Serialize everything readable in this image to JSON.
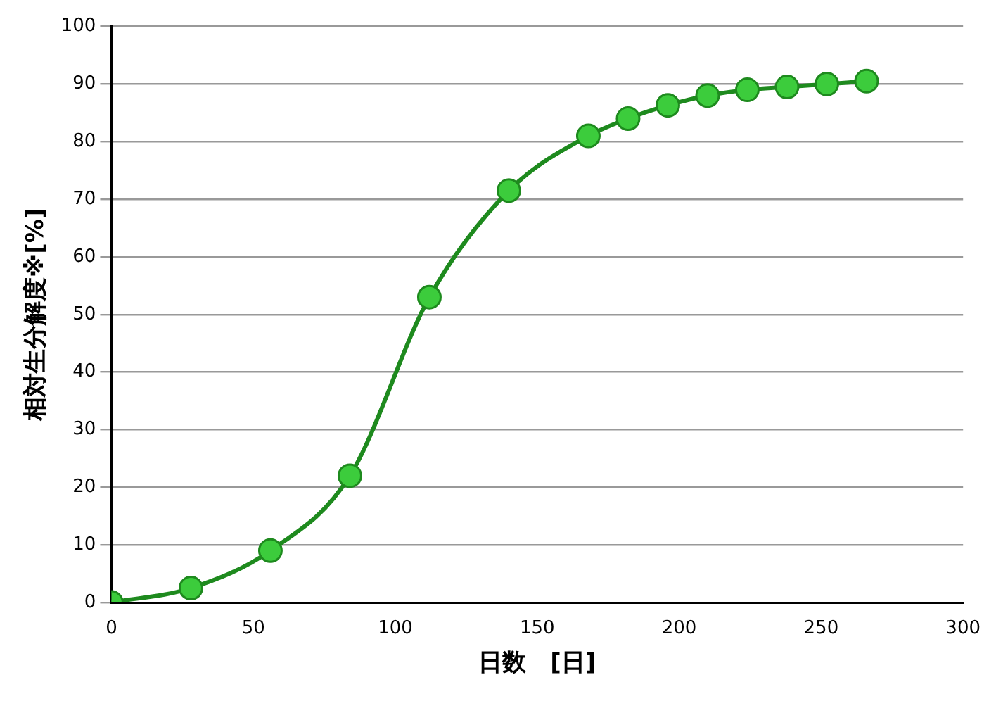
{
  "chart_data": {
    "type": "line",
    "xlabel": "日数　[日]",
    "ylabel": "相対生分解度※[%]",
    "x": [
      0,
      28,
      56,
      84,
      112,
      140,
      168,
      182,
      196,
      210,
      224,
      238,
      252,
      266
    ],
    "series": [
      {
        "color": "#1e8a1e",
        "values": [
          0,
          2.5,
          9,
          22,
          53,
          71.5,
          81,
          84,
          86.3,
          88,
          89,
          89.5,
          90,
          90.5
        ]
      }
    ],
    "xlim": [
      0,
      300
    ],
    "xticks": [
      0,
      50,
      100,
      150,
      200,
      250,
      300
    ],
    "ylim": [
      0,
      100
    ],
    "yticks": [
      0,
      10,
      20,
      30,
      40,
      50,
      60,
      70,
      80,
      90,
      100
    ],
    "grid": "y",
    "marker": "circle",
    "line_style": "solid",
    "legend": false
  }
}
